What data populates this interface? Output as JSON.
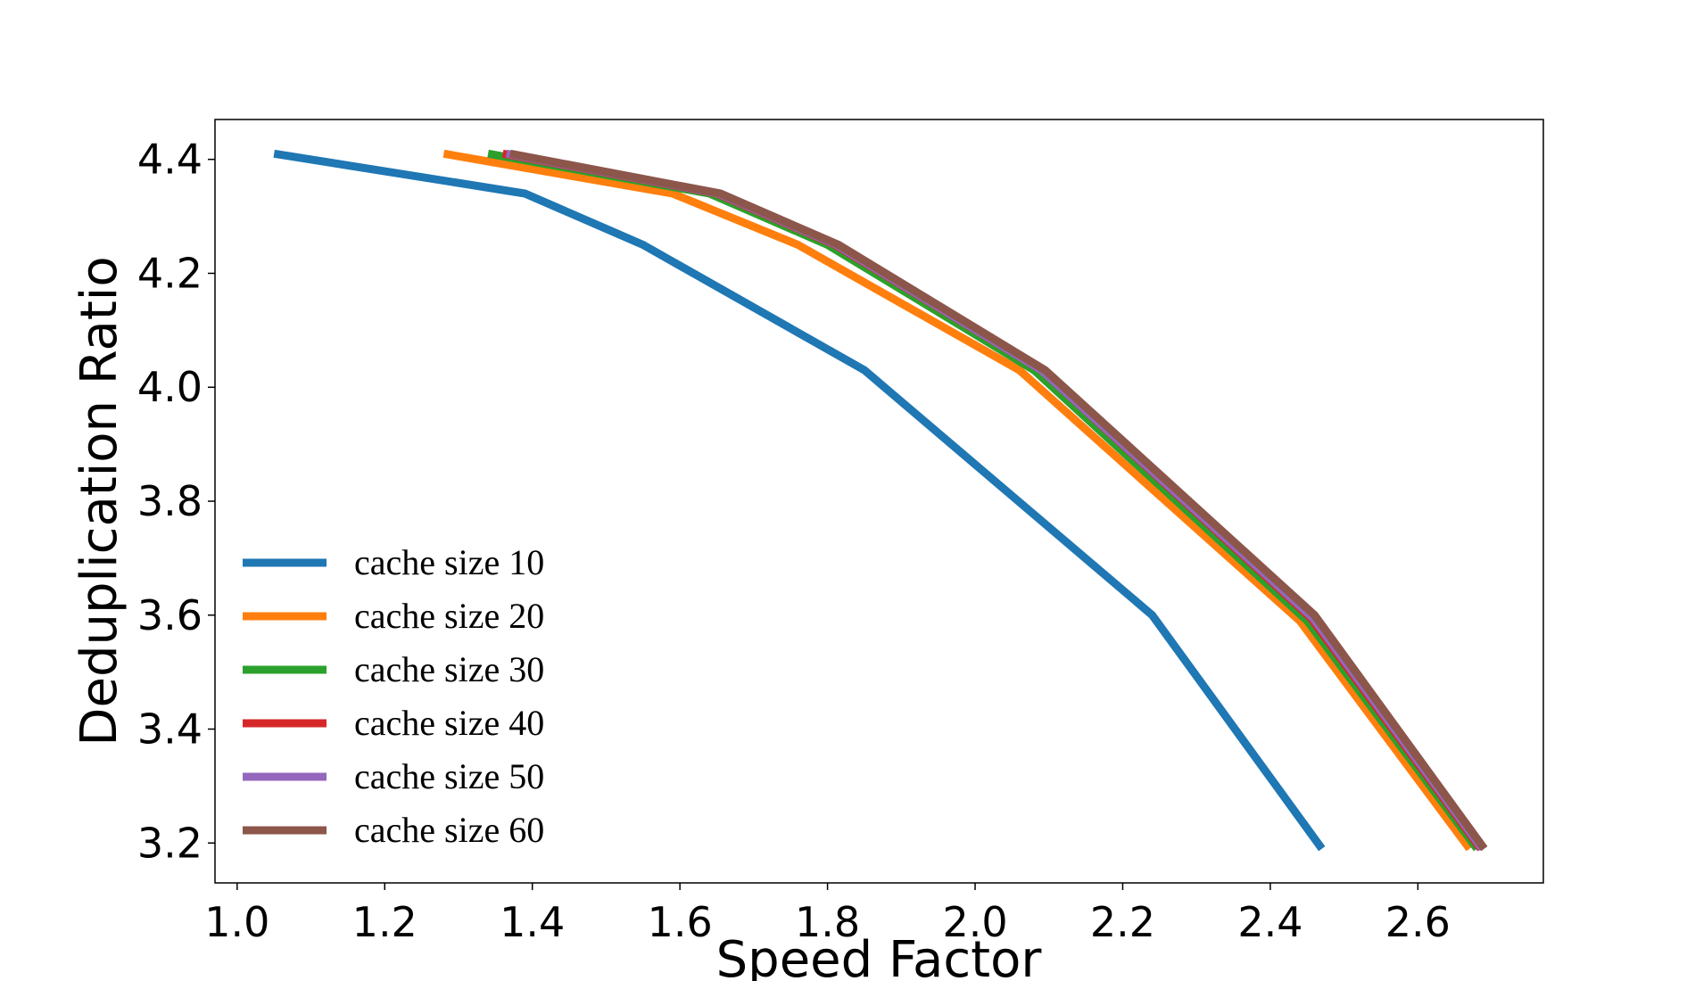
{
  "chart_data": {
    "type": "line",
    "title": "",
    "xlabel": "Speed Factor",
    "ylabel": "Deduplication Ratio",
    "xlim": [
      0.97,
      2.77
    ],
    "ylim": [
      3.13,
      4.47
    ],
    "xticks": [
      1.0,
      1.2,
      1.4,
      1.6,
      1.8,
      2.0,
      2.2,
      2.4,
      2.6
    ],
    "xtick_labels": [
      "1.0",
      "1.2",
      "1.4",
      "1.6",
      "1.8",
      "2.0",
      "2.2",
      "2.4",
      "2.6"
    ],
    "yticks": [
      3.2,
      3.4,
      3.6,
      3.8,
      4.0,
      4.2,
      4.4
    ],
    "ytick_labels": [
      "3.2",
      "3.4",
      "3.6",
      "3.8",
      "4.0",
      "4.2",
      "4.4"
    ],
    "grid": false,
    "legend_position": "lower-left",
    "series": [
      {
        "name": "cache size 10",
        "color": "#1f77b4",
        "x": [
          1.05,
          1.39,
          1.55,
          1.85,
          2.24,
          2.47
        ],
        "y": [
          4.41,
          4.34,
          4.25,
          4.03,
          3.6,
          3.19
        ]
      },
      {
        "name": "cache size 20",
        "color": "#ff7f0e",
        "x": [
          1.28,
          1.59,
          1.76,
          2.06,
          2.44,
          2.67
        ],
        "y": [
          4.41,
          4.34,
          4.25,
          4.03,
          3.59,
          3.19
        ]
      },
      {
        "name": "cache size 30",
        "color": "#2ca02c",
        "x": [
          1.34,
          1.64,
          1.8,
          2.08,
          2.45,
          2.68
        ],
        "y": [
          4.41,
          4.34,
          4.25,
          4.03,
          3.59,
          3.19
        ]
      },
      {
        "name": "cache size 40",
        "color": "#d62728",
        "x": [
          1.36,
          1.65,
          1.81,
          2.09,
          2.455,
          2.685
        ],
        "y": [
          4.41,
          4.34,
          4.25,
          4.03,
          3.595,
          3.19
        ]
      },
      {
        "name": "cache size 50",
        "color": "#9467bd",
        "x": [
          1.365,
          1.652,
          1.812,
          2.09,
          2.458,
          2.687
        ],
        "y": [
          4.41,
          4.34,
          4.25,
          4.03,
          3.595,
          3.19
        ]
      },
      {
        "name": "cache size 60",
        "color": "#8c564b",
        "x": [
          1.37,
          1.655,
          1.815,
          2.095,
          2.46,
          2.69
        ],
        "y": [
          4.41,
          4.34,
          4.25,
          4.03,
          3.6,
          3.19
        ]
      }
    ]
  }
}
